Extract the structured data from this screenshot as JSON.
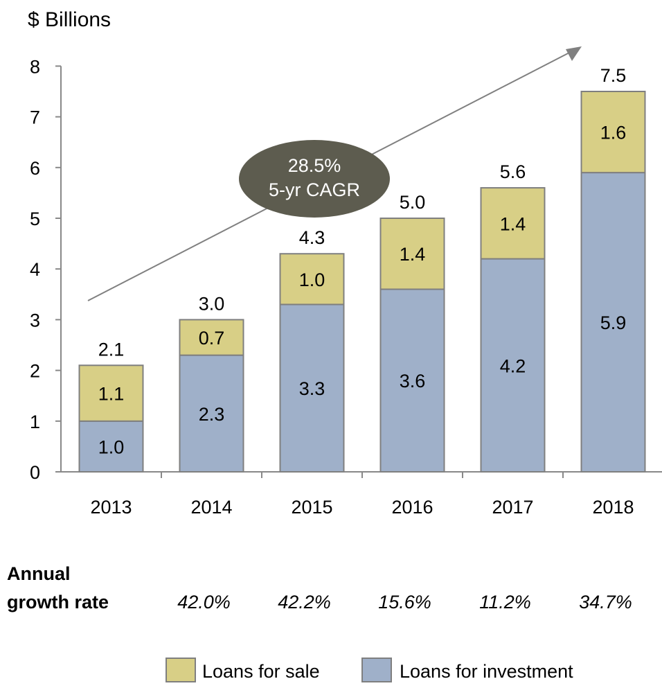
{
  "chart_data": {
    "type": "bar",
    "stacked": true,
    "title": "",
    "ylabel": "$ Billions",
    "xlabel": "",
    "ylim": [
      0,
      8
    ],
    "yticks": [
      "0",
      "1",
      "2",
      "3",
      "4",
      "5",
      "6",
      "7",
      "8"
    ],
    "categories": [
      "2013",
      "2014",
      "2015",
      "2016",
      "2017",
      "2018"
    ],
    "series": [
      {
        "name": "Loans for investment",
        "values": [
          1.0,
          2.3,
          3.3,
          3.6,
          4.2,
          5.9
        ],
        "labels": [
          "1.0",
          "2.3",
          "3.3",
          "3.6",
          "4.2",
          "5.9"
        ],
        "color": "#9fb0c9"
      },
      {
        "name": "Loans for sale",
        "values": [
          1.1,
          0.7,
          1.0,
          1.4,
          1.4,
          1.6
        ],
        "labels": [
          "1.1",
          "0.7",
          "1.0",
          "1.4",
          "1.4",
          "1.6"
        ],
        "color": "#d8cf86"
      }
    ],
    "totals": [
      "2.1",
      "3.0",
      "4.3",
      "5.0",
      "5.6",
      "7.5"
    ],
    "legend_order": [
      "Loans for sale",
      "Loans for investment"
    ],
    "legend_placement": "bottom",
    "grid": false,
    "annotation": {
      "line1": "28.5%",
      "line2": "5-yr CAGR",
      "color": "#5d5c4f"
    },
    "growth": {
      "label_line1": "Annual",
      "label_line2": "growth rate",
      "values": [
        "42.0%",
        "42.2%",
        "15.6%",
        "11.2%",
        "34.7%"
      ]
    }
  }
}
